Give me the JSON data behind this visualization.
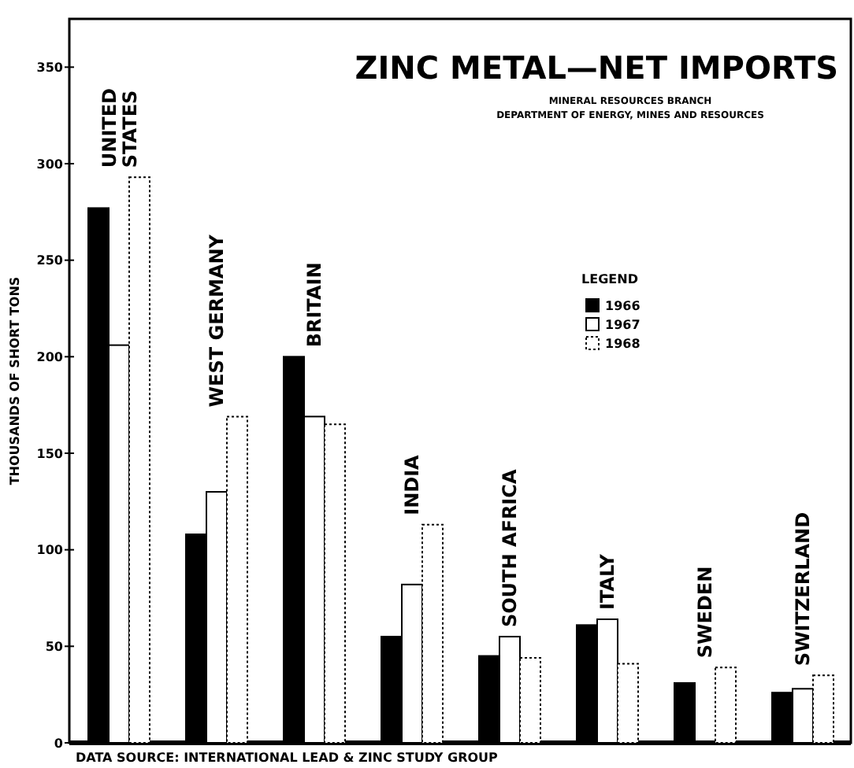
{
  "chart_data": {
    "type": "bar",
    "title": "ZINC METAL—NET IMPORTS",
    "subtitle": "MINERAL RESOURCES BRANCH\nDEPARTMENT OF ENERGY, MINES AND RESOURCES",
    "ylabel": "THOUSANDS OF SHORT TONS",
    "legend_title": "LEGEND",
    "legend": "right",
    "categories": [
      "UNITED STATES",
      "WEST GERMANY",
      "BRITAIN",
      "INDIA",
      "SOUTH AFRICA",
      "ITALY",
      "SWEDEN",
      "SWITZERLAND"
    ],
    "series": [
      {
        "name": "1966",
        "color": "#000000",
        "values": [
          277,
          108,
          200,
          55,
          45,
          61,
          31,
          26
        ]
      },
      {
        "name": "1967",
        "color": "#ffffff",
        "values": [
          206,
          130,
          169,
          82,
          55,
          64,
          null,
          28
        ]
      },
      {
        "name": "1968",
        "color": "#ffffff",
        "line_style": "dotted",
        "values": [
          293,
          169,
          165,
          113,
          44,
          41,
          39,
          35
        ]
      }
    ],
    "ylim": [
      0,
      375
    ],
    "yticks": [
      0,
      50,
      100,
      150,
      200,
      250,
      300,
      350
    ],
    "grid": false,
    "annotations": [
      "DATA SOURCE: INTERNATIONAL LEAD & ZINC STUDY GROUP"
    ]
  }
}
